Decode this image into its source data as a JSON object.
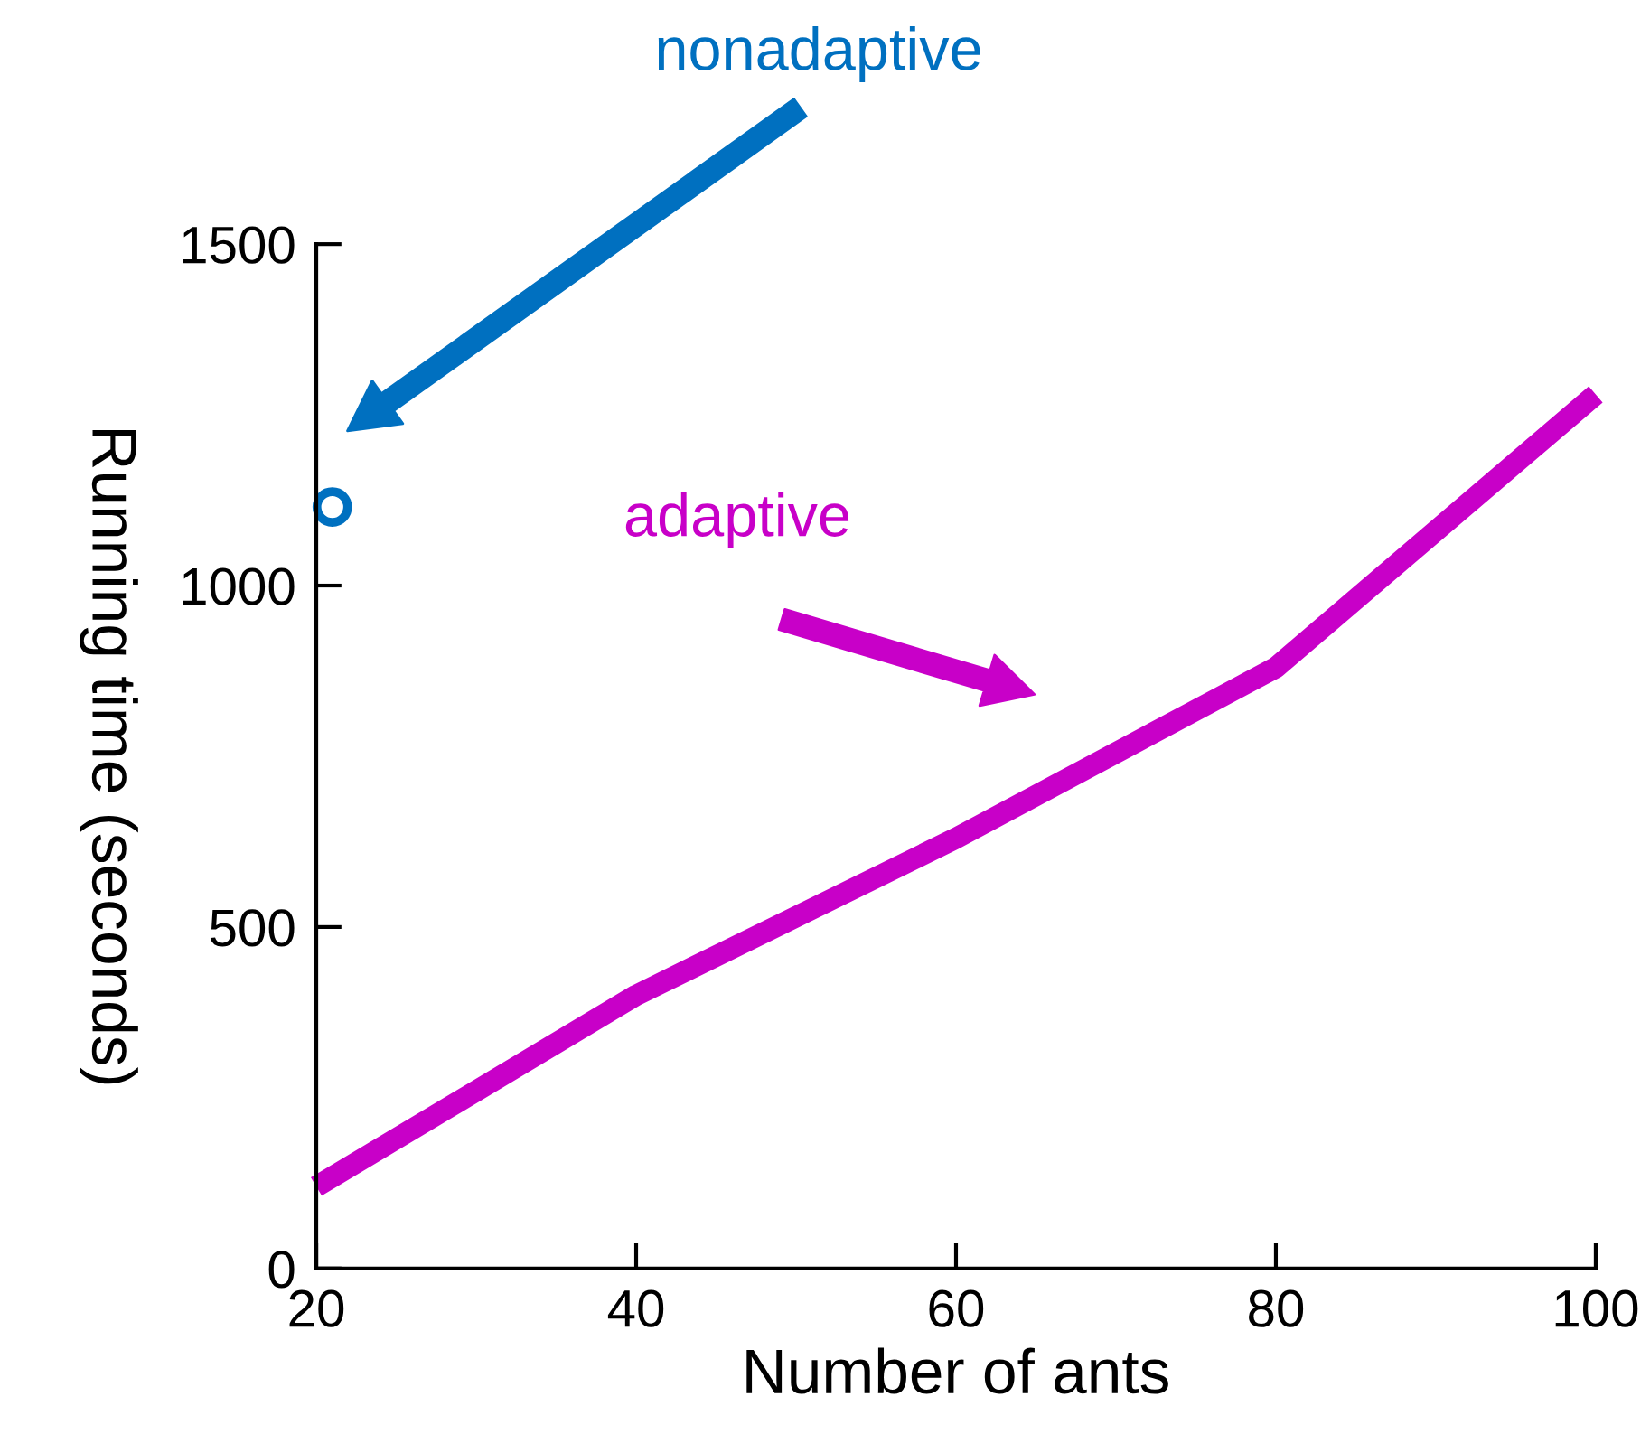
{
  "chart_data": {
    "type": "line",
    "xlabel": "Number of ants",
    "ylabel": "Running time (seconds)",
    "xlim": [
      20,
      100
    ],
    "xticks": [
      20,
      40,
      60,
      80,
      100
    ],
    "ylim": [
      0,
      1500
    ],
    "yticks": [
      0,
      500,
      1000,
      1500
    ],
    "grid": false,
    "legend": false,
    "series": [
      {
        "color": "#c800c8",
        "x": [
          20,
          40,
          60,
          80,
          100
        ],
        "values": [
          120,
          400,
          630,
          880,
          1280
        ],
        "marker": "none",
        "line_style": "solid"
      },
      {
        "type": "scatter",
        "color": "#0070c0",
        "x": [
          21
        ],
        "values": [
          1115
        ],
        "marker": "circle"
      }
    ],
    "annotations": [
      "nonadaptive",
      "adaptive"
    ]
  }
}
